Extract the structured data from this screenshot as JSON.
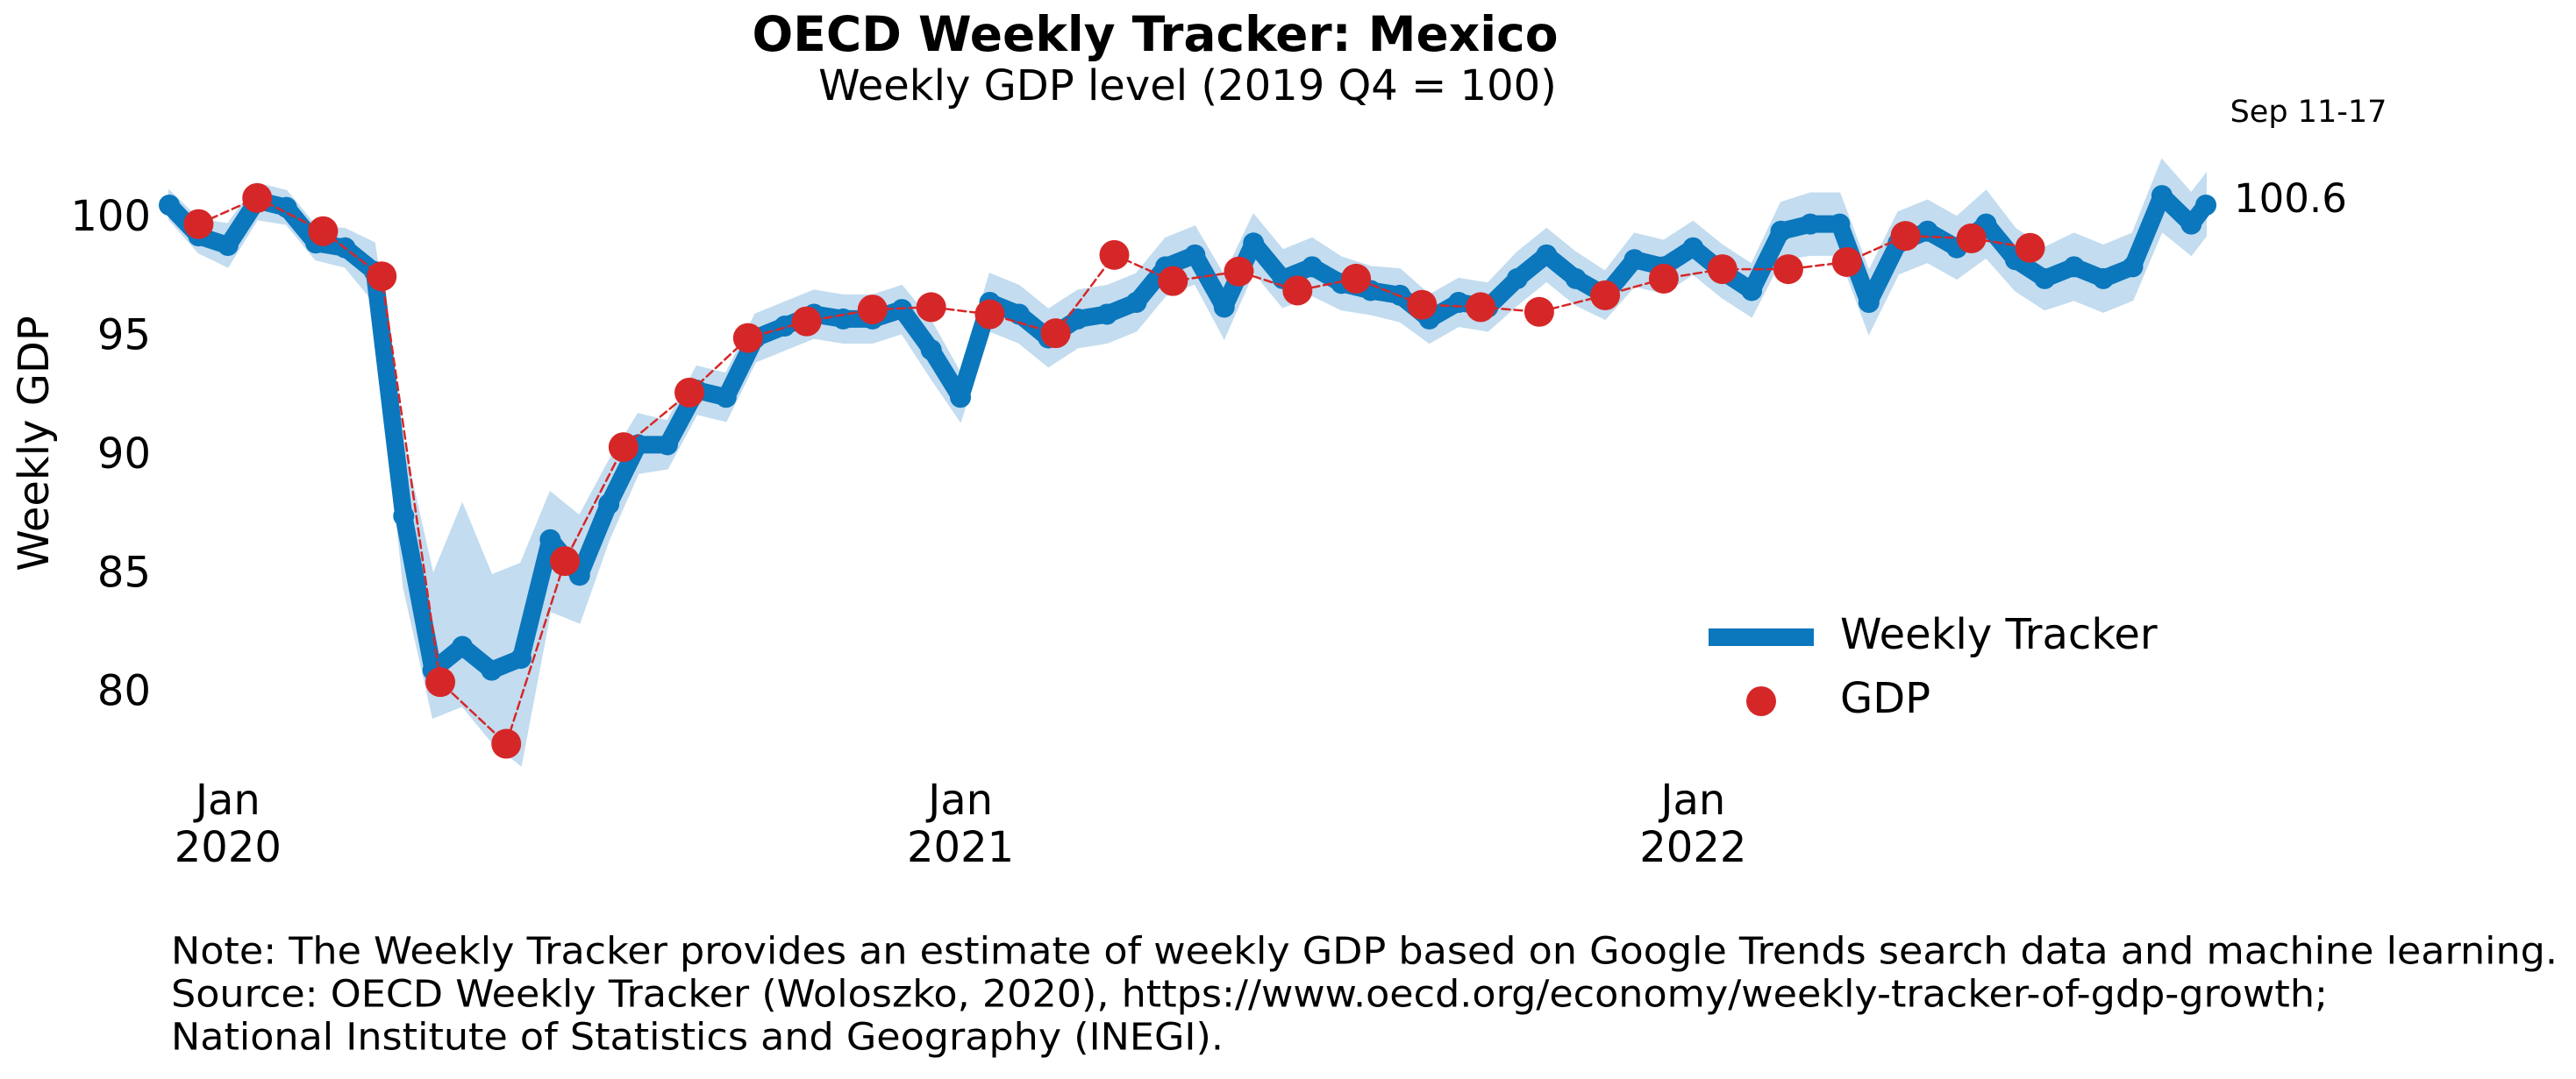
{
  "chart_data": {
    "type": "line",
    "title": "OECD Weekly Tracker: Mexico",
    "subtitle": "Weekly GDP level (2019 Q4 = 100)",
    "y_label": "Weekly GDP",
    "xlim": [
      2019.92,
      2022.7
    ],
    "xticks": [
      {
        "value": 2020,
        "label": "Jan\n2020"
      },
      {
        "value": 2021,
        "label": "Jan\n2021"
      },
      {
        "value": 2022,
        "label": "Jan\n2022"
      }
    ],
    "ylim": [
      76,
      103
    ],
    "yticks": [
      80,
      85,
      90,
      95,
      100
    ],
    "grid": false,
    "legend": "lower right",
    "band_color": "#c3dcef",
    "series": [
      {
        "name": "Weekly Tracker",
        "color": "#0b77bd",
        "x": [
          2019.92,
          2019.96,
          2020.0,
          2020.04,
          2020.08,
          2020.12,
          2020.16,
          2020.2,
          2020.24,
          2020.28,
          2020.32,
          2020.36,
          2020.4,
          2020.44,
          2020.48,
          2020.52,
          2020.56,
          2020.6,
          2020.64,
          2020.68,
          2020.72,
          2020.76,
          2020.8,
          2020.84,
          2020.88,
          2020.92,
          2020.96,
          2021.0,
          2021.04,
          2021.08,
          2021.12,
          2021.16,
          2021.2,
          2021.24,
          2021.28,
          2021.32,
          2021.36,
          2021.4,
          2021.44,
          2021.48,
          2021.52,
          2021.56,
          2021.6,
          2021.64,
          2021.68,
          2021.72,
          2021.76,
          2021.8,
          2021.84,
          2021.88,
          2021.92,
          2021.96,
          2022.0,
          2022.04,
          2022.08,
          2022.12,
          2022.16,
          2022.2,
          2022.24,
          2022.28,
          2022.32,
          2022.36,
          2022.4,
          2022.44,
          2022.48,
          2022.52,
          2022.56,
          2022.6,
          2022.64,
          2022.68,
          2022.7
        ],
        "values": [
          100.6,
          99.3,
          98.9,
          100.8,
          100.5,
          99.0,
          98.8,
          97.8,
          87.5,
          81.0,
          82.0,
          81.0,
          81.5,
          86.5,
          85.0,
          88.0,
          90.5,
          90.5,
          92.8,
          92.5,
          95.0,
          95.5,
          96.0,
          95.8,
          95.8,
          96.2,
          94.5,
          92.5,
          96.5,
          96.0,
          95.0,
          95.8,
          96.0,
          96.5,
          98.0,
          98.5,
          96.3,
          99.0,
          97.5,
          98.0,
          97.3,
          97.0,
          96.8,
          95.8,
          96.5,
          96.3,
          97.5,
          98.5,
          97.5,
          96.8,
          98.3,
          98.0,
          98.8,
          97.8,
          97.0,
          99.5,
          99.8,
          99.8,
          96.5,
          99.0,
          99.5,
          98.8,
          99.8,
          98.3,
          97.5,
          98.0,
          97.5,
          98.0,
          101.0,
          99.8,
          100.6
        ],
        "lower": [
          100.0,
          98.6,
          98.0,
          100.0,
          99.8,
          98.3,
          98.0,
          96.5,
          84.5,
          79.0,
          79.5,
          78.0,
          77.0,
          83.5,
          83.0,
          86.5,
          89.3,
          89.5,
          91.8,
          91.5,
          94.0,
          94.5,
          95.0,
          94.8,
          94.8,
          95.2,
          93.3,
          91.5,
          95.3,
          94.8,
          93.8,
          94.6,
          94.8,
          95.3,
          96.8,
          97.3,
          95.0,
          97.8,
          96.3,
          96.8,
          96.2,
          96.0,
          95.7,
          94.8,
          95.5,
          95.3,
          96.4,
          97.4,
          96.4,
          95.8,
          97.2,
          96.9,
          97.7,
          96.7,
          95.9,
          98.3,
          98.5,
          98.5,
          95.2,
          97.7,
          98.2,
          97.5,
          98.4,
          97.0,
          96.2,
          96.6,
          96.1,
          96.6,
          99.5,
          98.5,
          99.3
        ],
        "upper": [
          101.2,
          100.0,
          99.8,
          101.5,
          101.2,
          99.7,
          99.6,
          99.0,
          90.5,
          85.0,
          88.0,
          85.0,
          85.5,
          88.5,
          87.5,
          89.8,
          91.8,
          91.5,
          93.8,
          93.5,
          96.0,
          96.5,
          97.0,
          96.8,
          96.8,
          97.2,
          95.7,
          93.5,
          97.7,
          97.2,
          96.2,
          97.0,
          97.2,
          97.7,
          99.2,
          99.7,
          97.6,
          100.2,
          98.7,
          99.2,
          98.4,
          98.0,
          97.9,
          96.8,
          97.5,
          97.3,
          98.6,
          99.6,
          98.6,
          97.8,
          99.4,
          99.1,
          99.9,
          98.9,
          98.1,
          100.7,
          101.1,
          101.1,
          97.8,
          100.3,
          100.8,
          100.1,
          101.2,
          99.6,
          98.8,
          99.4,
          98.9,
          99.4,
          102.5,
          101.1,
          101.9
        ]
      },
      {
        "name": "GDP",
        "color": "#d62728",
        "x": [
          2019.96,
          2020.04,
          2020.13,
          2020.21,
          2020.29,
          2020.38,
          2020.46,
          2020.54,
          2020.63,
          2020.71,
          2020.79,
          2020.88,
          2020.96,
          2021.04,
          2021.13,
          2021.21,
          2021.29,
          2021.38,
          2021.46,
          2021.54,
          2021.63,
          2021.71,
          2021.79,
          2021.88,
          2021.96,
          2022.04,
          2022.13,
          2022.21,
          2022.29,
          2022.38,
          2022.46
        ],
        "values": [
          99.8,
          100.9,
          99.5,
          97.6,
          80.5,
          77.9,
          85.6,
          90.4,
          92.7,
          95.0,
          95.7,
          96.2,
          96.3,
          96.0,
          95.2,
          98.5,
          97.4,
          97.8,
          97.0,
          97.5,
          96.4,
          96.3,
          96.1,
          96.8,
          97.5,
          97.9,
          97.9,
          98.2,
          99.3,
          99.2,
          98.8
        ]
      }
    ],
    "annotations": [
      "Sep 11-17",
      "100.6"
    ],
    "notes": [
      "Note: The Weekly Tracker provides an estimate of weekly GDP based on Google Trends search data and machine learning.",
      "Source: OECD Weekly Tracker (Woloszko, 2020), https://www.oecd.org/economy/weekly-tracker-of-gdp-growth;",
      "National Institute of Statistics and Geography (INEGI)."
    ]
  }
}
